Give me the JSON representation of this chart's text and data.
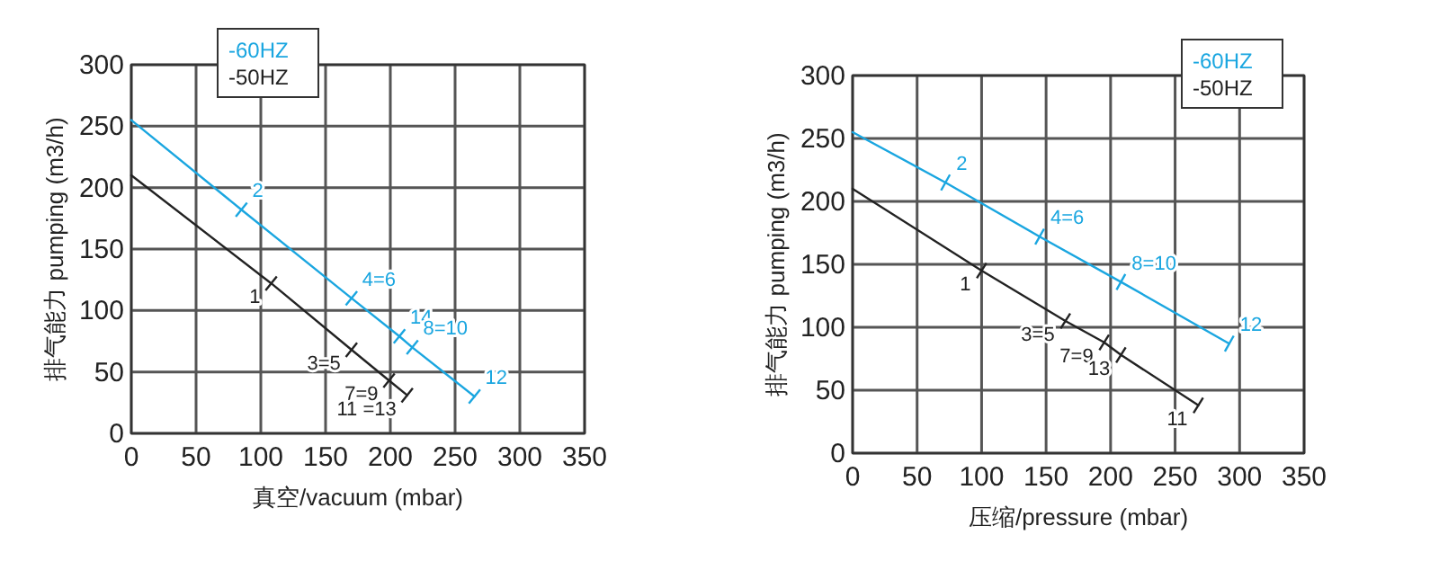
{
  "chart_data": [
    {
      "type": "line",
      "xlabel": "真空/vacuum (mbar)",
      "ylabel": "排气能力 pumping (m3/h)",
      "xlim": [
        0,
        350
      ],
      "ylim": [
        0,
        300
      ],
      "xticks": [
        0,
        50,
        100,
        150,
        200,
        250,
        300,
        350
      ],
      "yticks": [
        0,
        50,
        100,
        150,
        200,
        250,
        300
      ],
      "grid": true,
      "legend": "top",
      "marker": "cross",
      "series": [
        {
          "name": "-60HZ",
          "color": "#1aa6e0",
          "x": [
            0,
            85,
            170,
            207,
            217,
            265
          ],
          "values": [
            255,
            182,
            110,
            79,
            70,
            30
          ]
        },
        {
          "name": "-50HZ",
          "color": "#222222",
          "x": [
            0,
            108,
            170,
            199,
            213
          ],
          "values": [
            210,
            122,
            68,
            43,
            31
          ]
        }
      ],
      "annotations": [
        {
          "text": "2",
          "x": 85,
          "y": 182
        },
        {
          "text": "4=6",
          "x": 170,
          "y": 110
        },
        {
          "text": "14",
          "x": 207,
          "y": 79
        },
        {
          "text": "8=10",
          "x": 217,
          "y": 70
        },
        {
          "text": "12",
          "x": 265,
          "y": 30
        },
        {
          "text": "1",
          "x": 108,
          "y": 122
        },
        {
          "text": "3=5",
          "x": 170,
          "y": 68
        },
        {
          "text": "7=9",
          "x": 199,
          "y": 43
        },
        {
          "text": "11 =13",
          "x": 213,
          "y": 31
        }
      ]
    },
    {
      "type": "line",
      "xlabel": "压缩/pressure (mbar)",
      "ylabel": "排气能力 pumping (m3/h)",
      "xlim": [
        0,
        350
      ],
      "ylim": [
        0,
        300
      ],
      "xticks": [
        0,
        50,
        100,
        150,
        200,
        250,
        300,
        350
      ],
      "yticks": [
        0,
        50,
        100,
        150,
        200,
        250,
        300
      ],
      "grid": true,
      "legend": "top right",
      "marker": "cross",
      "series": [
        {
          "name": "-60HZ",
          "color": "#1aa6e0",
          "x": [
            0,
            72,
            145,
            208,
            292
          ],
          "values": [
            255,
            215,
            172,
            136,
            87
          ]
        },
        {
          "name": "-50HZ",
          "color": "#222222",
          "x": [
            0,
            100,
            165,
            195,
            208,
            268
          ],
          "values": [
            210,
            145,
            105,
            88,
            78,
            38
          ]
        }
      ],
      "annotations": [
        {
          "text": "2",
          "x": 72,
          "y": 215
        },
        {
          "text": "4=6",
          "x": 145,
          "y": 172
        },
        {
          "text": "8=10",
          "x": 208,
          "y": 136
        },
        {
          "text": "12",
          "x": 292,
          "y": 87
        },
        {
          "text": "1",
          "x": 100,
          "y": 145
        },
        {
          "text": "3=5",
          "x": 165,
          "y": 105
        },
        {
          "text": "7=9",
          "x": 195,
          "y": 88
        },
        {
          "text": "13",
          "x": 208,
          "y": 78
        },
        {
          "text": "11",
          "x": 268,
          "y": 38
        }
      ]
    }
  ]
}
